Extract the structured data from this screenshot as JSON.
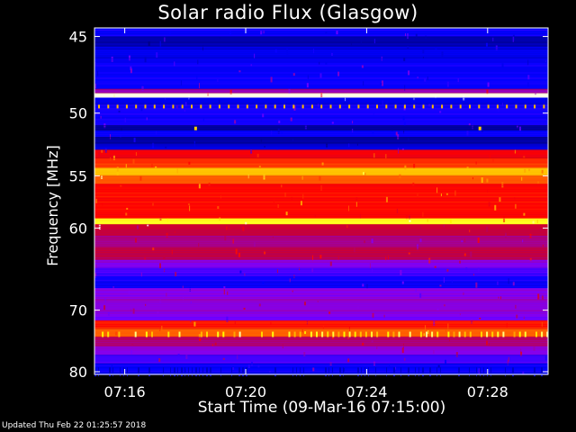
{
  "chart_data": {
    "type": "heatmap",
    "title": "Solar radio Flux (Glasgow)",
    "xlabel": "Start Time (09-Mar-16 07:15:00)",
    "ylabel": "Frequency [MHz]",
    "x_ticks": [
      "07:16",
      "07:20",
      "07:24",
      "07:28"
    ],
    "x_tick_minutes": [
      1,
      5,
      9,
      13
    ],
    "xlim_minutes": [
      0,
      15
    ],
    "y_ticks": [
      45,
      50,
      55,
      60,
      70,
      80
    ],
    "ylim": [
      44.5,
      80.5
    ],
    "y_scale": "reciprocal",
    "colorscale": [
      "#000080",
      "#0000ff",
      "#8000ff",
      "#c00040",
      "#ff0000",
      "#ff8000",
      "#ffff00",
      "#ffffff"
    ],
    "bands": [
      {
        "f0": 44.5,
        "f1": 45.0,
        "level": 0.15
      },
      {
        "f0": 45.0,
        "f1": 45.6,
        "level": 0.05
      },
      {
        "f0": 45.6,
        "f1": 46.3,
        "level": 0.12
      },
      {
        "f0": 46.3,
        "f1": 48.3,
        "level": 0.15
      },
      {
        "f0": 48.3,
        "f1": 48.6,
        "level": 0.35
      },
      {
        "f0": 48.6,
        "f1": 48.9,
        "level": 0.98
      },
      {
        "f0": 48.9,
        "f1": 49.4,
        "level": 0.12
      },
      {
        "f0": 49.4,
        "f1": 50.9,
        "level": 0.16
      },
      {
        "f0": 50.9,
        "f1": 51.3,
        "level": 0.05
      },
      {
        "f0": 51.3,
        "f1": 51.8,
        "level": 0.14
      },
      {
        "f0": 51.8,
        "f1": 52.3,
        "level": 0.04
      },
      {
        "f0": 52.3,
        "f1": 52.8,
        "level": 0.1
      },
      {
        "f0": 52.8,
        "f1": 53.5,
        "level": 0.55
      },
      {
        "f0": 53.5,
        "f1": 54.3,
        "level": 0.62
      },
      {
        "f0": 54.3,
        "f1": 55.0,
        "level": 0.78
      },
      {
        "f0": 55.0,
        "f1": 55.7,
        "level": 0.66
      },
      {
        "f0": 55.7,
        "f1": 59.0,
        "level": 0.58
      },
      {
        "f0": 59.0,
        "f1": 59.6,
        "level": 0.88
      },
      {
        "f0": 59.6,
        "f1": 60.8,
        "level": 0.45
      },
      {
        "f0": 60.8,
        "f1": 62.0,
        "level": 0.38
      },
      {
        "f0": 62.0,
        "f1": 63.5,
        "level": 0.42
      },
      {
        "f0": 63.5,
        "f1": 64.5,
        "level": 0.3
      },
      {
        "f0": 64.5,
        "f1": 65.5,
        "level": 0.22
      },
      {
        "f0": 65.5,
        "f1": 67.0,
        "level": 0.16
      },
      {
        "f0": 67.0,
        "f1": 68.5,
        "level": 0.3
      },
      {
        "f0": 68.5,
        "f1": 70.5,
        "level": 0.32
      },
      {
        "f0": 70.5,
        "f1": 71.5,
        "level": 0.28
      },
      {
        "f0": 71.5,
        "f1": 72.8,
        "level": 0.6
      },
      {
        "f0": 72.8,
        "f1": 74.0,
        "level": 0.68
      },
      {
        "f0": 74.0,
        "f1": 75.5,
        "level": 0.4
      },
      {
        "f0": 75.5,
        "f1": 77.0,
        "level": 0.3
      },
      {
        "f0": 77.0,
        "f1": 78.5,
        "level": 0.22
      },
      {
        "f0": 78.5,
        "f1": 80.5,
        "level": 0.14
      }
    ]
  },
  "footer": {
    "updated": "Updated Thu Feb 22 01:25:57 2018"
  }
}
